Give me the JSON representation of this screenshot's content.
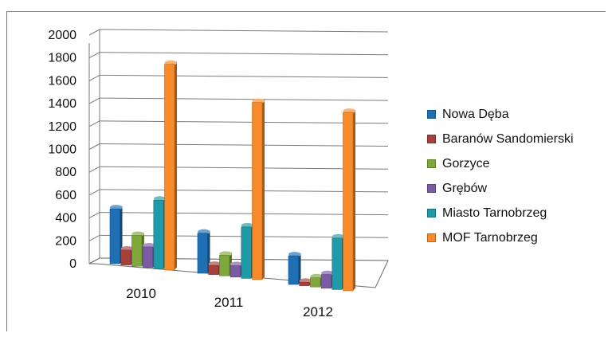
{
  "chart_data": {
    "type": "bar",
    "categories": [
      "2010",
      "2011",
      "2012"
    ],
    "series": [
      {
        "name": "Nowa Dęba",
        "color": "#1f6fb4",
        "values": [
          480,
          350,
          250
        ]
      },
      {
        "name": "Baranów Sandomierski",
        "color": "#a6403c",
        "values": [
          130,
          80,
          30
        ]
      },
      {
        "name": "Gorzyce",
        "color": "#7fa83a",
        "values": [
          270,
          180,
          80
        ]
      },
      {
        "name": "Grębów",
        "color": "#7c5ba6",
        "values": [
          180,
          100,
          120
        ]
      },
      {
        "name": "Miasto Tarnobrzeg",
        "color": "#1e9aa8",
        "values": [
          600,
          450,
          450
        ]
      },
      {
        "name": "MOF Tarnobrzeg",
        "color": "#f78a2a",
        "values": [
          1800,
          1550,
          1560
        ]
      }
    ],
    "yticks": [
      "0",
      "200",
      "400",
      "600",
      "800",
      "1000",
      "1200",
      "1400",
      "1600",
      "1800",
      "2000"
    ],
    "ylim": [
      0,
      2000
    ],
    "legend": "right",
    "grid": true
  }
}
